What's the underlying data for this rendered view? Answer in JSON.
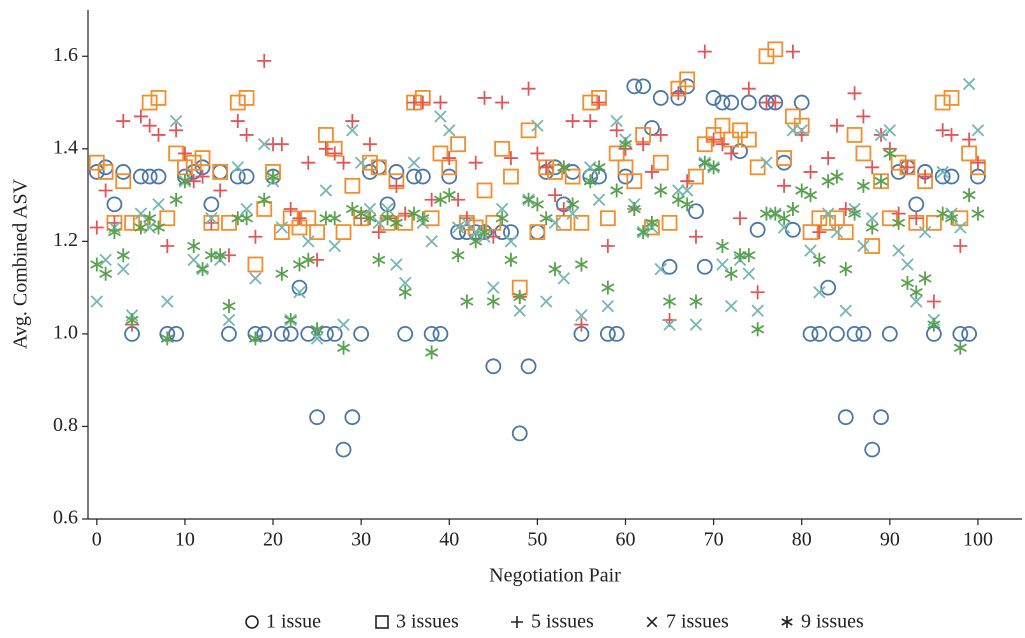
{
  "chart_data": {
    "type": "scatter",
    "x_label": "Negotiation Pair",
    "y_label": "Avg. Combined ASV",
    "x": [
      0,
      1,
      2,
      3,
      4,
      5,
      6,
      7,
      8,
      9,
      10,
      11,
      12,
      13,
      14,
      15,
      16,
      17,
      18,
      19,
      20,
      21,
      22,
      23,
      24,
      25,
      26,
      27,
      28,
      29,
      30,
      31,
      32,
      33,
      34,
      35,
      36,
      37,
      38,
      39,
      40,
      41,
      42,
      43,
      44,
      45,
      46,
      47,
      48,
      49,
      50,
      51,
      52,
      53,
      54,
      55,
      56,
      57,
      58,
      59,
      60,
      61,
      62,
      63,
      64,
      65,
      66,
      67,
      68,
      69,
      70,
      71,
      72,
      73,
      74,
      75,
      76,
      77,
      78,
      79,
      80,
      81,
      82,
      83,
      84,
      85,
      86,
      87,
      88,
      89,
      90,
      91,
      92,
      93,
      94,
      95,
      96,
      97,
      98,
      99,
      100
    ],
    "xlim": [
      -1,
      105
    ],
    "xticks": [
      0,
      10,
      20,
      30,
      40,
      50,
      60,
      70,
      80,
      90,
      100
    ],
    "ylim": [
      0.6,
      1.7
    ],
    "yticks": [
      0.6,
      0.8,
      {
        "value": 1.0,
        "label": "1.0"
      },
      1.2,
      1.4,
      1.6
    ],
    "legend": "bottom",
    "series": [
      {
        "name": "1 issue",
        "color": "#4a77a8",
        "marker": "circle",
        "values": [
          1.35,
          1.36,
          1.28,
          1.35,
          1.0,
          1.34,
          1.34,
          1.34,
          1.0,
          1.0,
          1.34,
          1.35,
          1.36,
          1.28,
          1.35,
          1.0,
          1.34,
          1.34,
          1.0,
          1.0,
          1.34,
          1.0,
          1.0,
          1.1,
          1.0,
          0.82,
          1.0,
          1.0,
          0.75,
          0.82,
          1.0,
          1.35,
          1.36,
          1.28,
          1.35,
          1.0,
          1.34,
          1.34,
          1.0,
          1.0,
          1.34,
          1.22,
          1.22,
          1.22,
          1.22,
          0.93,
          1.22,
          1.22,
          0.785,
          0.93,
          1.22,
          1.35,
          1.36,
          1.28,
          1.35,
          1.0,
          1.34,
          1.34,
          1.0,
          1.0,
          1.34,
          1.535,
          1.535,
          1.445,
          1.51,
          1.145,
          1.51,
          1.535,
          1.265,
          1.145,
          1.51,
          1.5,
          1.5,
          1.395,
          1.5,
          1.225,
          1.5,
          1.5,
          1.37,
          1.225,
          1.5,
          1.0,
          1.0,
          1.1,
          1.0,
          0.82,
          1.0,
          1.0,
          0.75,
          0.82,
          1.0,
          1.35,
          1.36,
          1.28,
          1.35,
          1.0,
          1.34,
          1.34,
          1.0,
          1.0,
          1.34
        ]
      },
      {
        "name": "3 issues",
        "color": "#f28e2b",
        "marker": "square",
        "values": [
          1.37,
          1.35,
          1.24,
          1.33,
          1.24,
          1.24,
          1.5,
          1.51,
          1.25,
          1.39,
          1.36,
          1.37,
          1.38,
          1.24,
          1.35,
          1.24,
          1.5,
          1.51,
          1.15,
          1.27,
          1.35,
          1.22,
          1.25,
          1.23,
          1.25,
          1.22,
          1.43,
          1.4,
          1.22,
          1.32,
          1.25,
          1.37,
          1.36,
          1.24,
          1.33,
          1.24,
          1.5,
          1.51,
          1.25,
          1.39,
          1.36,
          1.41,
          1.24,
          1.23,
          1.31,
          1.24,
          1.4,
          1.34,
          1.1,
          1.44,
          1.22,
          1.36,
          1.35,
          1.24,
          1.34,
          1.24,
          1.5,
          1.51,
          1.25,
          1.39,
          1.36,
          1.33,
          1.43,
          1.23,
          1.37,
          1.24,
          1.53,
          1.55,
          1.34,
          1.41,
          1.43,
          1.45,
          1.42,
          1.44,
          1.42,
          1.36,
          1.6,
          1.615,
          1.38,
          1.47,
          1.45,
          1.22,
          1.25,
          1.24,
          1.25,
          1.22,
          1.43,
          1.39,
          1.19,
          1.33,
          1.25,
          1.37,
          1.36,
          1.24,
          1.33,
          1.24,
          1.5,
          1.51,
          1.25,
          1.39,
          1.36
        ]
      },
      {
        "name": "5 issues",
        "color": "#e15759",
        "marker": "plus",
        "values": [
          1.23,
          1.31,
          1.24,
          1.46,
          1.02,
          1.47,
          1.45,
          1.43,
          1.19,
          1.44,
          1.39,
          1.33,
          1.34,
          1.24,
          1.31,
          1.17,
          1.46,
          1.43,
          1.21,
          1.59,
          1.41,
          1.41,
          1.27,
          1.25,
          1.37,
          1.16,
          1.4,
          1.39,
          1.37,
          1.46,
          1.25,
          1.41,
          1.22,
          1.25,
          1.32,
          1.26,
          1.5,
          1.5,
          1.29,
          1.5,
          1.38,
          1.29,
          1.25,
          1.37,
          1.51,
          1.21,
          1.5,
          1.38,
          1.08,
          1.53,
          1.39,
          1.36,
          1.3,
          1.27,
          1.46,
          1.02,
          1.46,
          1.5,
          1.19,
          1.44,
          1.4,
          1.27,
          1.41,
          1.35,
          1.43,
          1.03,
          1.52,
          1.33,
          1.21,
          1.61,
          1.42,
          1.41,
          1.39,
          1.25,
          1.53,
          1.09,
          1.5,
          1.5,
          1.32,
          1.61,
          1.43,
          1.35,
          1.22,
          1.38,
          1.45,
          1.27,
          1.52,
          1.47,
          1.36,
          1.43,
          1.4,
          1.26,
          1.36,
          1.25,
          1.34,
          1.07,
          1.44,
          1.43,
          1.19,
          1.42,
          1.37
        ]
      },
      {
        "name": "7 issues",
        "color": "#76b7b2",
        "marker": "x",
        "values": [
          1.07,
          1.16,
          1.23,
          1.14,
          1.04,
          1.26,
          1.23,
          1.28,
          1.07,
          1.46,
          1.33,
          1.16,
          1.14,
          1.25,
          1.16,
          1.03,
          1.36,
          1.27,
          1.12,
          1.41,
          1.33,
          1.23,
          1.03,
          1.09,
          1.2,
          0.99,
          1.31,
          1.19,
          1.02,
          1.44,
          1.37,
          1.27,
          1.24,
          1.27,
          1.15,
          1.11,
          1.37,
          1.24,
          1.2,
          1.47,
          1.44,
          1.23,
          1.24,
          1.22,
          1.21,
          1.1,
          1.27,
          1.2,
          1.05,
          1.29,
          1.45,
          1.07,
          1.24,
          1.12,
          1.26,
          1.04,
          1.36,
          1.29,
          1.06,
          1.46,
          1.42,
          1.28,
          1.22,
          1.23,
          1.14,
          1.02,
          1.31,
          1.31,
          1.02,
          1.37,
          1.36,
          1.15,
          1.06,
          1.16,
          1.13,
          1.05,
          1.37,
          1.26,
          1.23,
          1.44,
          1.44,
          1.18,
          1.09,
          1.26,
          1.22,
          1.05,
          1.27,
          1.19,
          1.25,
          1.43,
          1.44,
          1.18,
          1.15,
          1.07,
          1.22,
          1.03,
          1.35,
          1.26,
          1.23,
          1.54,
          1.44
        ]
      },
      {
        "name": "9 issues",
        "color": "#59a14f",
        "marker": "asterisk",
        "values": [
          1.15,
          1.13,
          1.22,
          1.17,
          1.03,
          1.23,
          1.25,
          1.23,
          0.99,
          1.29,
          1.33,
          1.19,
          1.14,
          1.17,
          1.17,
          1.06,
          1.25,
          1.25,
          0.99,
          1.29,
          1.34,
          1.13,
          1.03,
          1.15,
          1.16,
          1.01,
          1.25,
          1.25,
          0.97,
          1.27,
          1.26,
          1.25,
          1.16,
          1.25,
          1.24,
          1.09,
          1.26,
          1.25,
          0.96,
          1.29,
          1.3,
          1.17,
          1.07,
          1.2,
          1.22,
          1.07,
          1.25,
          1.16,
          1.08,
          1.29,
          1.28,
          1.25,
          1.14,
          1.36,
          1.28,
          1.15,
          1.33,
          1.36,
          1.1,
          1.31,
          1.41,
          1.27,
          1.22,
          1.24,
          1.31,
          1.07,
          1.29,
          1.28,
          1.07,
          1.37,
          1.36,
          1.19,
          1.13,
          1.17,
          1.17,
          1.01,
          1.26,
          1.26,
          1.25,
          1.27,
          1.31,
          1.3,
          1.16,
          1.33,
          1.34,
          1.14,
          1.26,
          1.32,
          1.23,
          1.33,
          1.39,
          1.24,
          1.11,
          1.09,
          1.12,
          1.02,
          1.26,
          1.25,
          0.97,
          1.3,
          1.26
        ]
      }
    ]
  }
}
